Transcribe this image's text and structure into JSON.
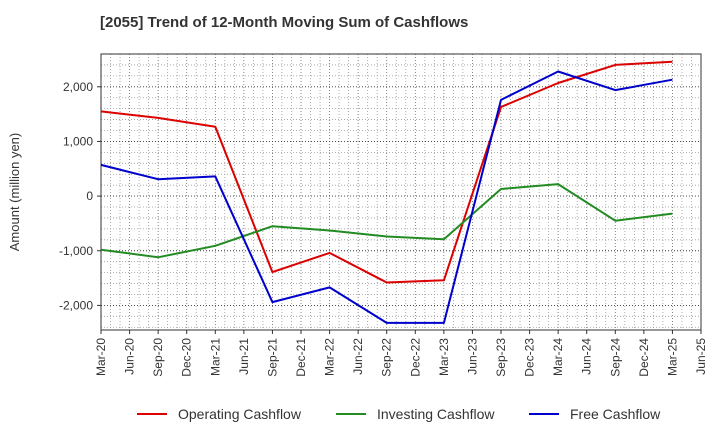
{
  "chart_data": {
    "type": "line",
    "title": "[2055]  Trend of 12-Month Moving Sum of Cashflows",
    "xlabel": "",
    "ylabel": "Amount (million yen)",
    "x_tick_labels": [
      "Mar-20",
      "Jun-20",
      "Sep-20",
      "Dec-20",
      "Mar-21",
      "Jun-21",
      "Sep-21",
      "Dec-21",
      "Mar-22",
      "Jun-22",
      "Sep-22",
      "Dec-22",
      "Mar-23",
      "Jun-23",
      "Sep-23",
      "Dec-23",
      "Mar-24",
      "Jun-24",
      "Sep-24",
      "Dec-24",
      "Mar-25",
      "Jun-25"
    ],
    "y_ticks": [
      2000,
      1000,
      0,
      -1000,
      -2000
    ],
    "y_tick_labels": [
      "2,000",
      "1,000",
      "0",
      "-1,000",
      "-2,000"
    ],
    "ylim": [
      -2450,
      2600
    ],
    "grid": true,
    "legend_position": "bottom",
    "series": [
      {
        "name": "Operating Cashflow",
        "color": "#dd0000",
        "points": [
          {
            "x": "Mar-20",
            "y": 1550
          },
          {
            "x": "Sep-20",
            "y": 1430
          },
          {
            "x": "Mar-21",
            "y": 1270
          },
          {
            "x": "Sep-21",
            "y": -1390
          },
          {
            "x": "Mar-22",
            "y": -1040
          },
          {
            "x": "Sep-22",
            "y": -1580
          },
          {
            "x": "Mar-23",
            "y": -1540
          },
          {
            "x": "Sep-23",
            "y": 1630
          },
          {
            "x": "Mar-24",
            "y": 2070
          },
          {
            "x": "Sep-24",
            "y": 2400
          },
          {
            "x": "Mar-25",
            "y": 2460
          }
        ]
      },
      {
        "name": "Investing Cashflow",
        "color": "#228b22",
        "points": [
          {
            "x": "Mar-20",
            "y": -980
          },
          {
            "x": "Sep-20",
            "y": -1120
          },
          {
            "x": "Mar-21",
            "y": -910
          },
          {
            "x": "Sep-21",
            "y": -550
          },
          {
            "x": "Mar-22",
            "y": -630
          },
          {
            "x": "Sep-22",
            "y": -740
          },
          {
            "x": "Mar-23",
            "y": -790
          },
          {
            "x": "Sep-23",
            "y": 130
          },
          {
            "x": "Mar-24",
            "y": 220
          },
          {
            "x": "Sep-24",
            "y": -450
          },
          {
            "x": "Mar-25",
            "y": -320
          }
        ]
      },
      {
        "name": "Free Cashflow",
        "color": "#0000cc",
        "points": [
          {
            "x": "Mar-20",
            "y": 570
          },
          {
            "x": "Sep-20",
            "y": 310
          },
          {
            "x": "Mar-21",
            "y": 360
          },
          {
            "x": "Sep-21",
            "y": -1940
          },
          {
            "x": "Mar-22",
            "y": -1670
          },
          {
            "x": "Sep-22",
            "y": -2320
          },
          {
            "x": "Mar-23",
            "y": -2320
          },
          {
            "x": "Sep-23",
            "y": 1760
          },
          {
            "x": "Mar-24",
            "y": 2280
          },
          {
            "x": "Sep-24",
            "y": 1940
          },
          {
            "x": "Mar-25",
            "y": 2130
          }
        ]
      }
    ]
  }
}
